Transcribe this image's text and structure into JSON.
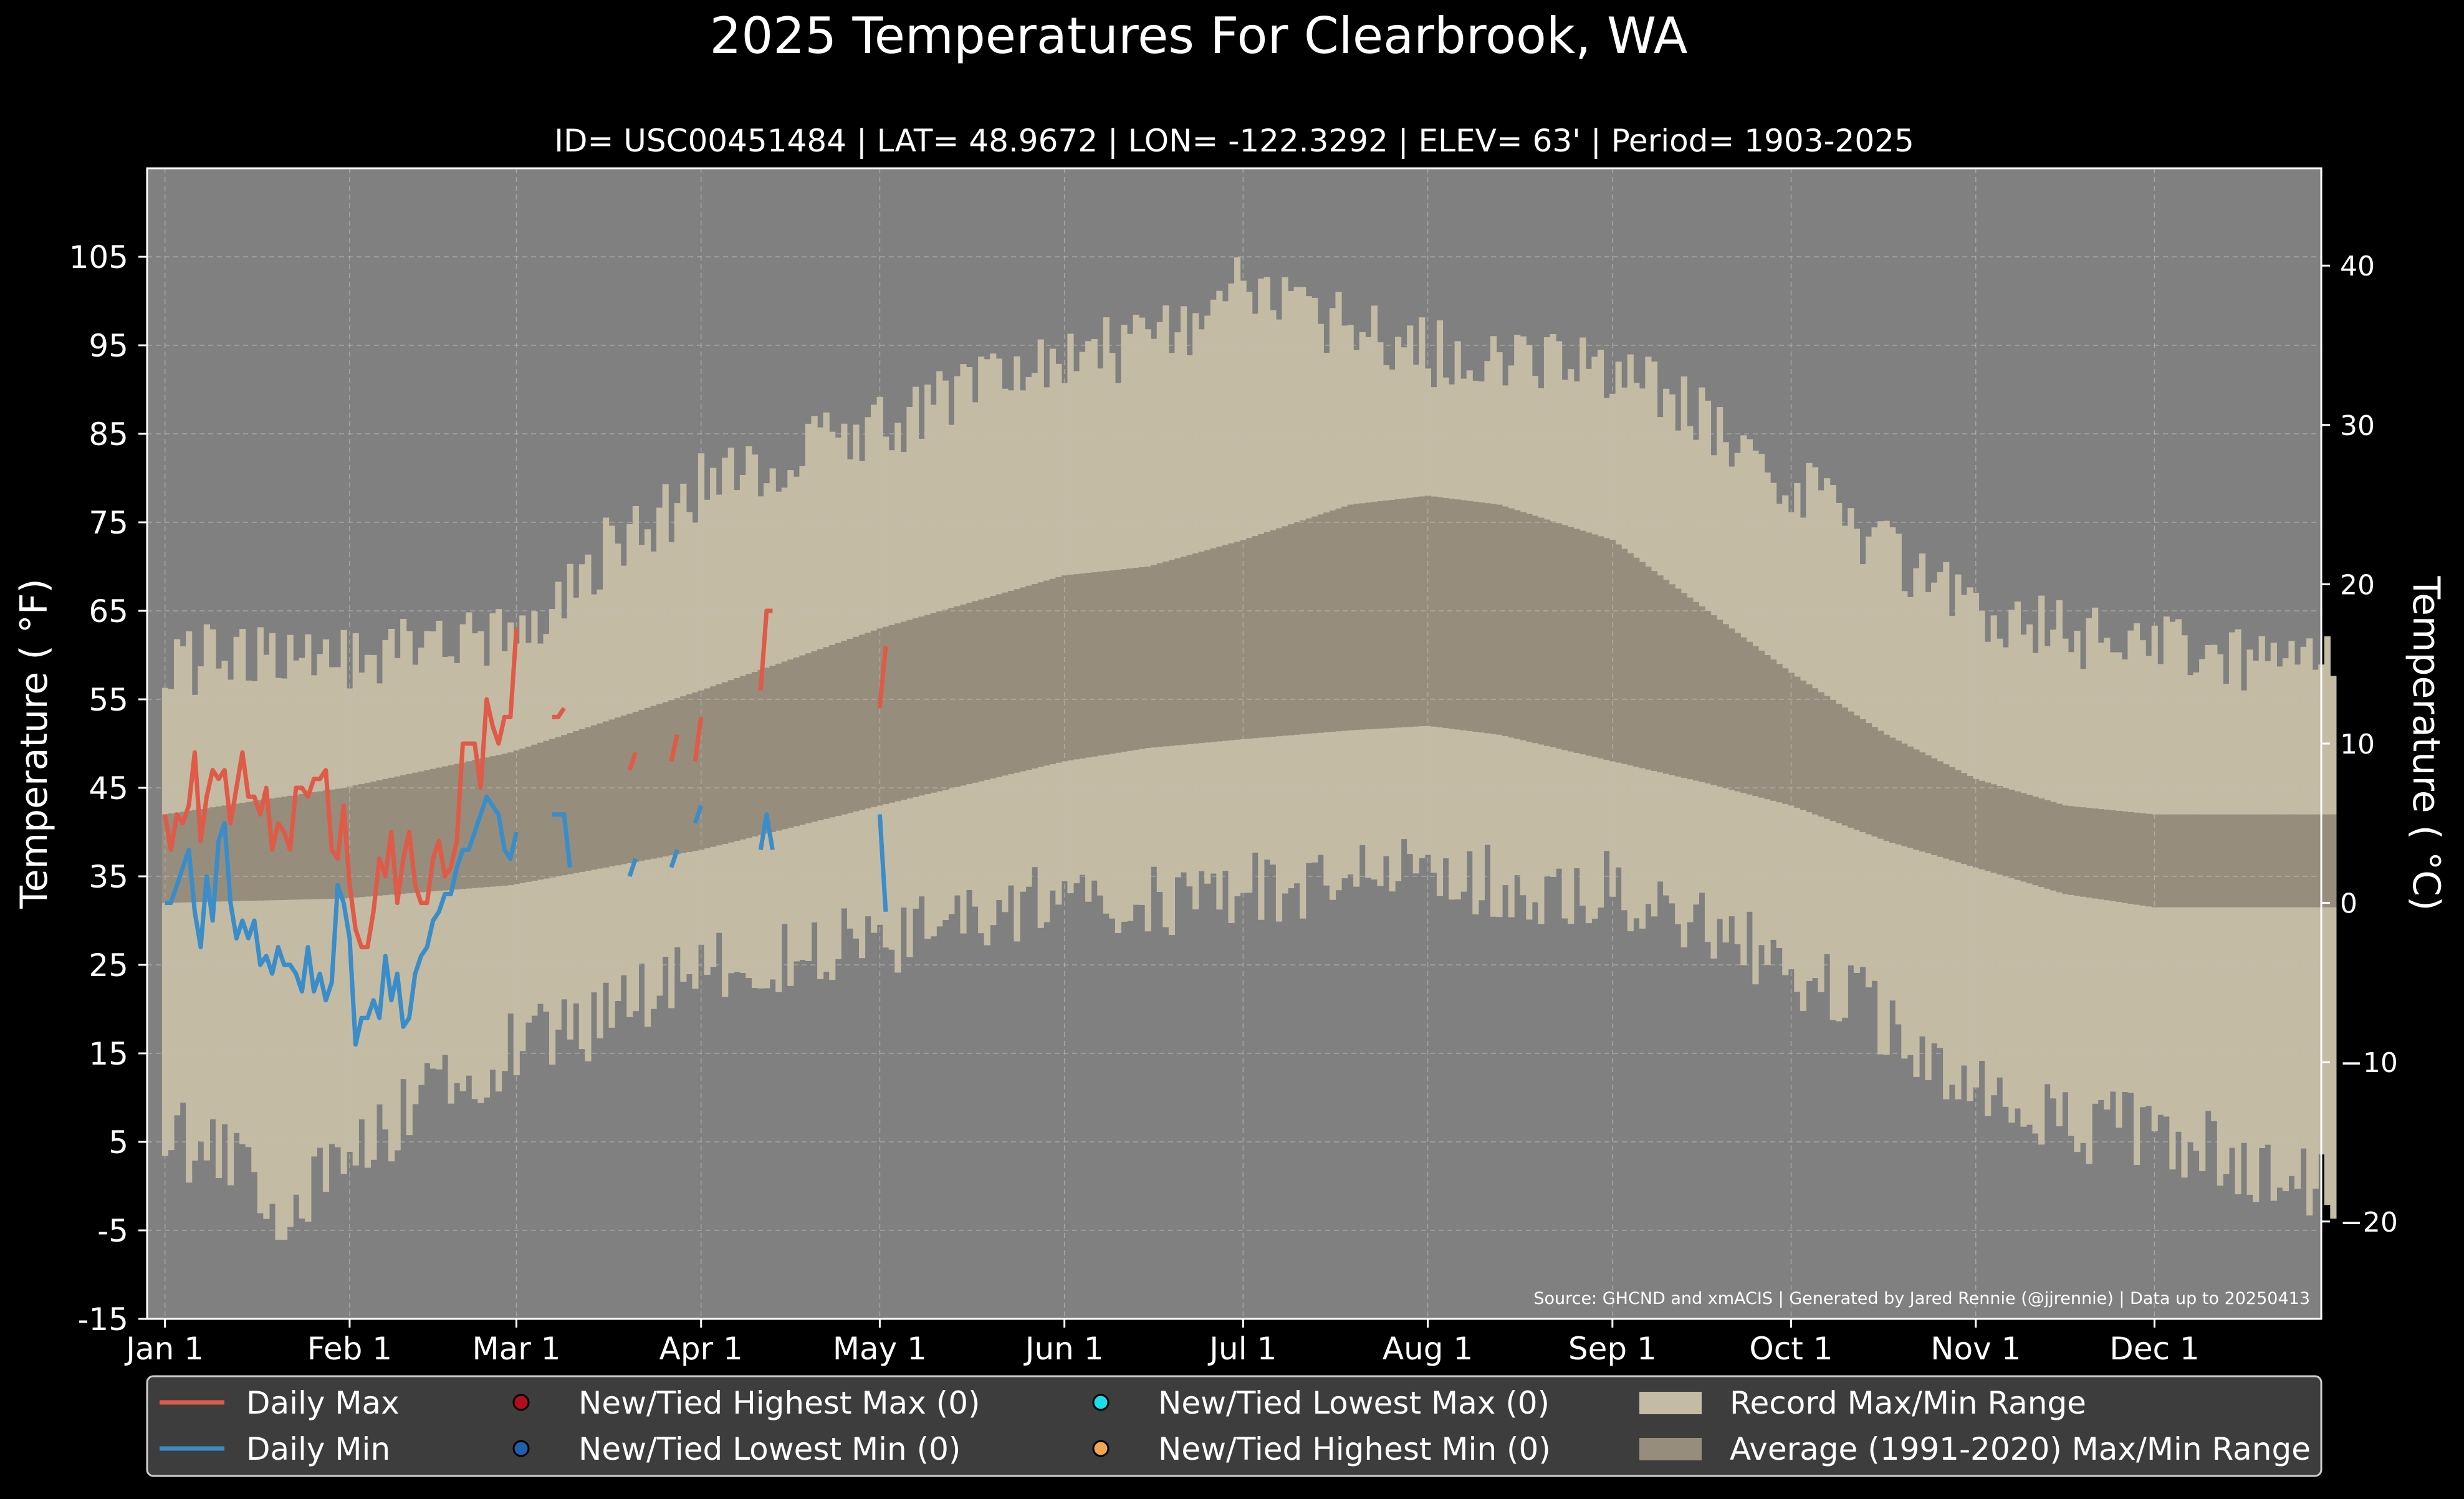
{
  "chart_data": {
    "type": "area",
    "title": "2025 Temperatures For Clearbrook, WA",
    "subtitle": "ID= USC00451484 | LAT= 48.9672 | LON= -122.3292 | ELEV= 63' | Period= 1903-2025",
    "ylabel": "Temperature ( °F)",
    "ylabel_right": "Temperature ( °C)",
    "source": "Source: GHCND and xmACIS | Generated by Jared Rennie (@jjrennie) | Data up to 20250413",
    "ylim": [
      -15,
      115
    ],
    "xlim": [
      -2,
      363
    ],
    "grid": true,
    "x_ticks": [
      {
        "label": "Jan 1",
        "day": 1
      },
      {
        "label": "Feb 1",
        "day": 32
      },
      {
        "label": "Mar 1",
        "day": 60
      },
      {
        "label": "Apr 1",
        "day": 91
      },
      {
        "label": "May 1",
        "day": 121
      },
      {
        "label": "Jun 1",
        "day": 152
      },
      {
        "label": "Jul 1",
        "day": 182
      },
      {
        "label": "Aug 1",
        "day": 213
      },
      {
        "label": "Sep 1",
        "day": 244
      },
      {
        "label": "Oct 1",
        "day": 274
      },
      {
        "label": "Nov 1",
        "day": 305
      },
      {
        "label": "Dec 1",
        "day": 335
      }
    ],
    "y_ticks_f": [
      -15,
      -5,
      5,
      15,
      25,
      35,
      45,
      55,
      65,
      75,
      85,
      95,
      105
    ],
    "y_ticks_c": [
      {
        "value": 40,
        "label": "40"
      },
      {
        "value": 30,
        "label": "30"
      },
      {
        "value": 20,
        "label": "20"
      },
      {
        "value": 10,
        "label": "10"
      },
      {
        "value": 0,
        "label": "0"
      },
      {
        "value": -10,
        "label": "−10"
      },
      {
        "value": -20,
        "label": "−20"
      }
    ],
    "record_max_anchors": [
      [
        1,
        55
      ],
      [
        3,
        59
      ],
      [
        10,
        60
      ],
      [
        20,
        61
      ],
      [
        31,
        60
      ],
      [
        45,
        61
      ],
      [
        59,
        62
      ],
      [
        66,
        66
      ],
      [
        75,
        72
      ],
      [
        85,
        76
      ],
      [
        91,
        79
      ],
      [
        105,
        82
      ],
      [
        121,
        86
      ],
      [
        135,
        89
      ],
      [
        152,
        94
      ],
      [
        166,
        95
      ],
      [
        175,
        97
      ],
      [
        182,
        104
      ],
      [
        190,
        98
      ],
      [
        200,
        97
      ],
      [
        213,
        94
      ],
      [
        225,
        94
      ],
      [
        240,
        93
      ],
      [
        255,
        89
      ],
      [
        266,
        84
      ],
      [
        274,
        80
      ],
      [
        285,
        74
      ],
      [
        295,
        69
      ],
      [
        305,
        66
      ],
      [
        320,
        62
      ],
      [
        335,
        61
      ],
      [
        350,
        60
      ],
      [
        365,
        61
      ]
    ],
    "record_min_anchors": [
      [
        1,
        6
      ],
      [
        8,
        4
      ],
      [
        15,
        2
      ],
      [
        21,
        -3
      ],
      [
        31,
        3
      ],
      [
        45,
        10
      ],
      [
        59,
        15
      ],
      [
        66,
        17
      ],
      [
        75,
        19
      ],
      [
        85,
        22
      ],
      [
        91,
        24
      ],
      [
        105,
        26
      ],
      [
        121,
        28
      ],
      [
        135,
        30
      ],
      [
        152,
        33
      ],
      [
        166,
        32
      ],
      [
        182,
        33
      ],
      [
        200,
        35
      ],
      [
        213,
        36
      ],
      [
        225,
        34
      ],
      [
        240,
        34
      ],
      [
        255,
        31
      ],
      [
        266,
        27
      ],
      [
        274,
        25
      ],
      [
        285,
        21
      ],
      [
        295,
        15
      ],
      [
        305,
        12
      ],
      [
        320,
        7
      ],
      [
        335,
        6
      ],
      [
        350,
        3
      ],
      [
        365,
        -1
      ]
    ],
    "avg_max_anchors": [
      [
        1,
        42
      ],
      [
        31,
        45
      ],
      [
        59,
        49
      ],
      [
        91,
        56
      ],
      [
        121,
        63
      ],
      [
        152,
        69
      ],
      [
        166,
        70
      ],
      [
        182,
        73
      ],
      [
        200,
        77
      ],
      [
        213,
        78
      ],
      [
        225,
        77
      ],
      [
        244,
        73
      ],
      [
        260,
        65
      ],
      [
        274,
        58
      ],
      [
        290,
        51
      ],
      [
        305,
        46
      ],
      [
        320,
        43
      ],
      [
        335,
        42
      ],
      [
        365,
        42
      ]
    ],
    "avg_min_anchors": [
      [
        1,
        32
      ],
      [
        31,
        32.5
      ],
      [
        59,
        34
      ],
      [
        91,
        38
      ],
      [
        121,
        43
      ],
      [
        152,
        48
      ],
      [
        166,
        49.5
      ],
      [
        182,
        50.5
      ],
      [
        200,
        51.5
      ],
      [
        213,
        52
      ],
      [
        225,
        51
      ],
      [
        244,
        48
      ],
      [
        260,
        45.5
      ],
      [
        274,
        43
      ],
      [
        290,
        39
      ],
      [
        305,
        36
      ],
      [
        320,
        33
      ],
      [
        335,
        31.5
      ],
      [
        365,
        31.5
      ]
    ],
    "series": [
      {
        "name": "Daily Max",
        "color": "#e05a48",
        "values": [
          42,
          38,
          42,
          41,
          43,
          49,
          39,
          44,
          47,
          46,
          47,
          41,
          45,
          49,
          44,
          44,
          42,
          45,
          38,
          41,
          40,
          38,
          45,
          45,
          44,
          46,
          46,
          47,
          38,
          37,
          43,
          34,
          29,
          27,
          27,
          31,
          37,
          35,
          40,
          32,
          37,
          40,
          34,
          32,
          32,
          37,
          39,
          35,
          36,
          39,
          50,
          50,
          50,
          45,
          55,
          52,
          50,
          53,
          53,
          63,
          null,
          null,
          null,
          null,
          null,
          53,
          53,
          54,
          null,
          null,
          null,
          null,
          null,
          null,
          null,
          null,
          null,
          null,
          47,
          49,
          null,
          null,
          null,
          null,
          null,
          48,
          51,
          null,
          null,
          48,
          53,
          null,
          null,
          null,
          null,
          null,
          null,
          null,
          null,
          null,
          56,
          65,
          65,
          null,
          null,
          null,
          null,
          null,
          null,
          null,
          null,
          null,
          null,
          null,
          null,
          null,
          null,
          null,
          null,
          null,
          54,
          61
        ]
      },
      {
        "name": "Daily Min",
        "color": "#3a8dc8",
        "values": [
          32,
          32,
          34,
          36,
          38,
          31,
          27,
          35,
          30,
          39,
          41,
          32,
          28,
          30,
          28,
          30,
          25,
          26,
          24,
          27,
          25,
          25,
          24,
          22,
          27,
          22,
          24,
          21,
          23,
          34,
          32,
          28,
          16,
          19,
          19,
          21,
          19,
          26,
          21,
          24,
          18,
          19,
          24,
          26,
          27,
          30,
          31,
          33,
          33,
          36,
          38,
          38,
          40,
          42,
          44,
          43,
          42,
          38,
          37,
          40,
          null,
          null,
          null,
          null,
          null,
          42,
          42,
          42,
          36,
          null,
          null,
          null,
          null,
          null,
          null,
          null,
          null,
          null,
          35,
          37,
          null,
          null,
          null,
          null,
          null,
          36,
          38,
          null,
          null,
          41,
          43,
          null,
          null,
          null,
          null,
          null,
          null,
          null,
          null,
          null,
          38,
          42,
          38,
          null,
          null,
          null,
          null,
          null,
          null,
          null,
          null,
          null,
          null,
          null,
          null,
          null,
          null,
          null,
          null,
          null,
          42,
          31
        ]
      }
    ],
    "legend": [
      {
        "label": "Daily Max",
        "kind": "line",
        "color": "#e05a48"
      },
      {
        "label": "Daily Min",
        "kind": "line",
        "color": "#3a8dc8"
      },
      {
        "label": "New/Tied Highest Max (0)",
        "kind": "dot",
        "color": "#b30d1c"
      },
      {
        "label": "New/Tied Lowest Min (0)",
        "kind": "dot",
        "color": "#1f5fae"
      },
      {
        "label": "New/Tied Lowest Max (0)",
        "kind": "dot",
        "color": "#19e0e8"
      },
      {
        "label": "New/Tied Highest Min (0)",
        "kind": "dot",
        "color": "#f2a552"
      },
      {
        "label": "Record Max/Min Range",
        "kind": "patch",
        "color": "#c4bba4"
      },
      {
        "label": "Average (1991-2020) Max/Min Range",
        "kind": "patch",
        "color": "#968d7d"
      }
    ],
    "legend_placement": "bottom",
    "colors": {
      "background": "#000000",
      "plot_background": "#808080",
      "record_range": "#c4bba4",
      "average_range": "#968d7d",
      "grid": "#bdbdbd",
      "text": "#ffffff",
      "legend_background": "#3d3d3d"
    }
  }
}
